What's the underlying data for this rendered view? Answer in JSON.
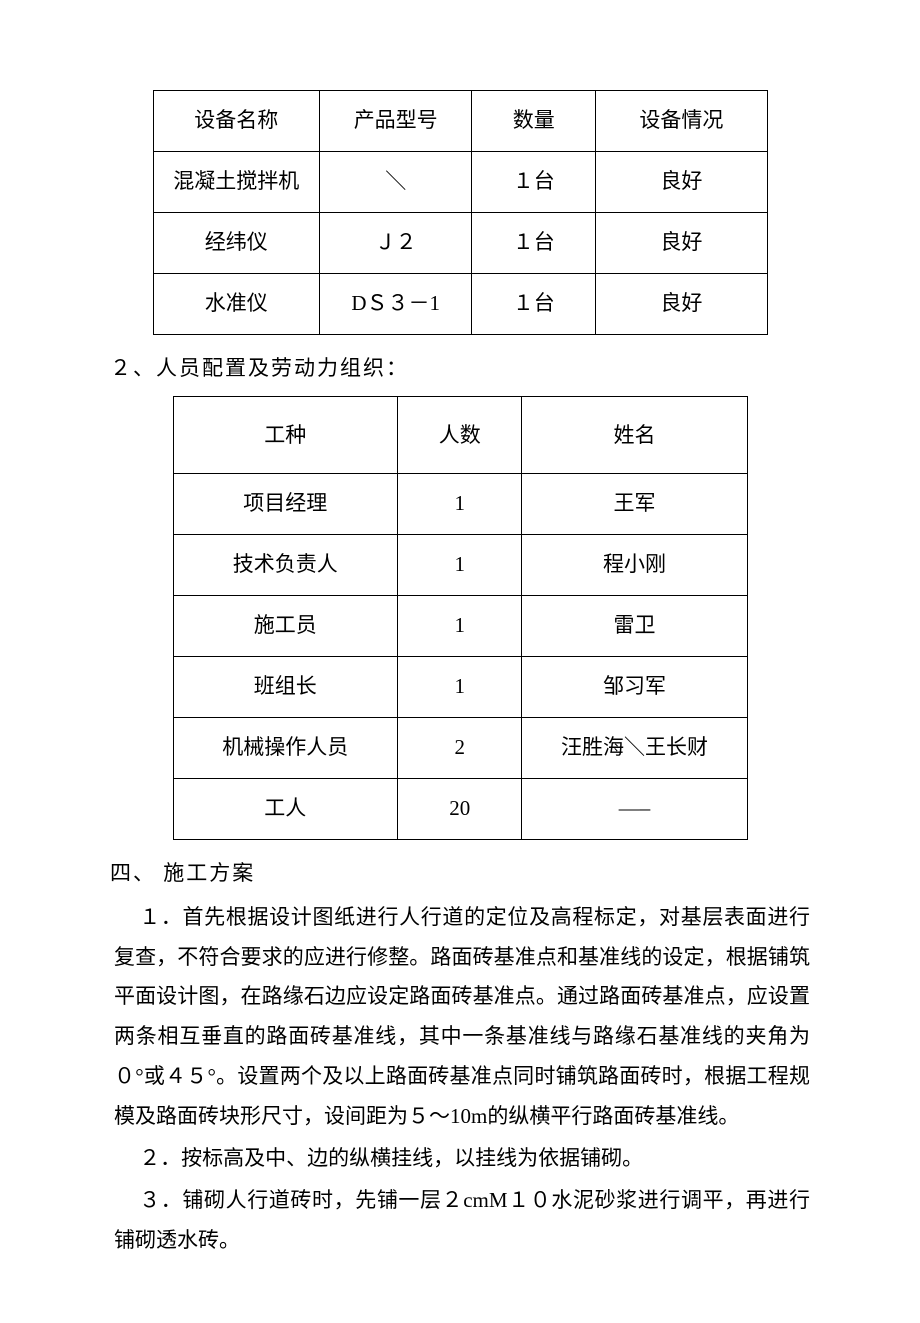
{
  "table1": {
    "headers": [
      "设备名称",
      "产品型号",
      "数量",
      "设备情况"
    ],
    "rows": [
      [
        "混凝土搅拌机",
        "＼",
        "１台",
        "良好"
      ],
      [
        "经纬仪",
        "Ｊ２",
        "１台",
        "良好"
      ],
      [
        "水准仪",
        "DＳ３－1",
        "１台",
        "良好"
      ]
    ]
  },
  "section2_label": "２、人员配置及劳动力组织：",
  "table2": {
    "headers": [
      "工种",
      "人数",
      "姓名"
    ],
    "rows": [
      [
        "项目经理",
        "1",
        "王军"
      ],
      [
        "技术负责人",
        "1",
        "程小刚"
      ],
      [
        "施工员",
        "1",
        "雷卫"
      ],
      [
        "班组长",
        "1",
        "邹习军"
      ],
      [
        "机械操作人员",
        "2",
        "汪胜海＼王长财"
      ],
      [
        "工人",
        "20",
        "—–"
      ]
    ]
  },
  "heading4": "四、 施工方案",
  "p1a": "１．首先根据设计图纸进行人行道的定位及高程标定，对基层表面进行复查，不符合要求的应进行修整。路面砖基准点和基准线的设定，根据铺筑平面设计图，在路缘石边应设定路面砖基准点。通过路面砖基准点，应设置两条相互垂直的路面砖基准线，其中一条基准线与路缘石基准线的夹角为０°或４５°。设置两个及以上路面砖基准点同时铺筑路面砖时，根据工程规模及路面砖块形尺寸，设间距为５～10m的纵横平行路面砖基准线。",
  "p2": "２．按标高及中、边的纵横挂线，以挂线为依据铺砌。",
  "p3": "３．铺砌人行道砖时，先铺一层２cmM１０水泥砂浆进行调平，再进行铺砌透水砖。"
}
